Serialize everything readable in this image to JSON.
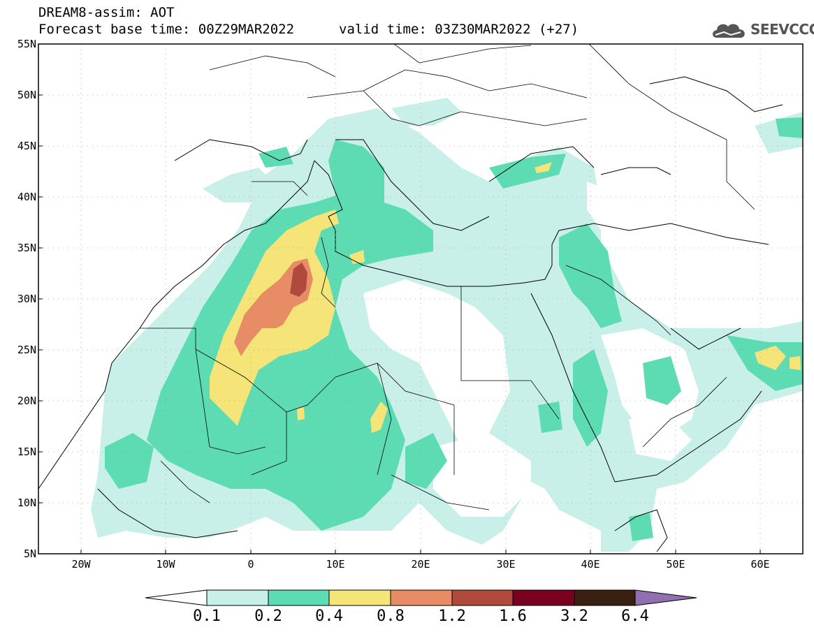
{
  "header": {
    "product": "DREAM8-assim: AOT",
    "base_time": "Forecast base time: 00Z29MAR2022",
    "valid_time": "valid time: 03Z30MAR2022 (+27)",
    "logo_text": "SEEVCCC"
  },
  "axes": {
    "lat_labels": [
      "55N",
      "50N",
      "45N",
      "40N",
      "35N",
      "30N",
      "25N",
      "20N",
      "15N",
      "10N",
      "5N"
    ],
    "lon_labels": [
      "20W",
      "10W",
      "0",
      "10E",
      "20E",
      "30E",
      "40E",
      "50E",
      "60E"
    ]
  },
  "colorbar": {
    "labels": [
      "0.1",
      "0.2",
      "0.4",
      "0.8",
      "1.2",
      "1.6",
      "3.2",
      "6.4"
    ],
    "colors": [
      "#c8f0e8",
      "#5ddcb4",
      "#f5e478",
      "#e88c66",
      "#b04a3c",
      "#7a0020",
      "#3a2010",
      "#9070b0"
    ]
  },
  "map_colors": {
    "light": "#c8f0e8",
    "medium": "#5ddcb4",
    "high": "#f5e478",
    "higher": "#e88c66",
    "peak": "#b04a3c"
  }
}
